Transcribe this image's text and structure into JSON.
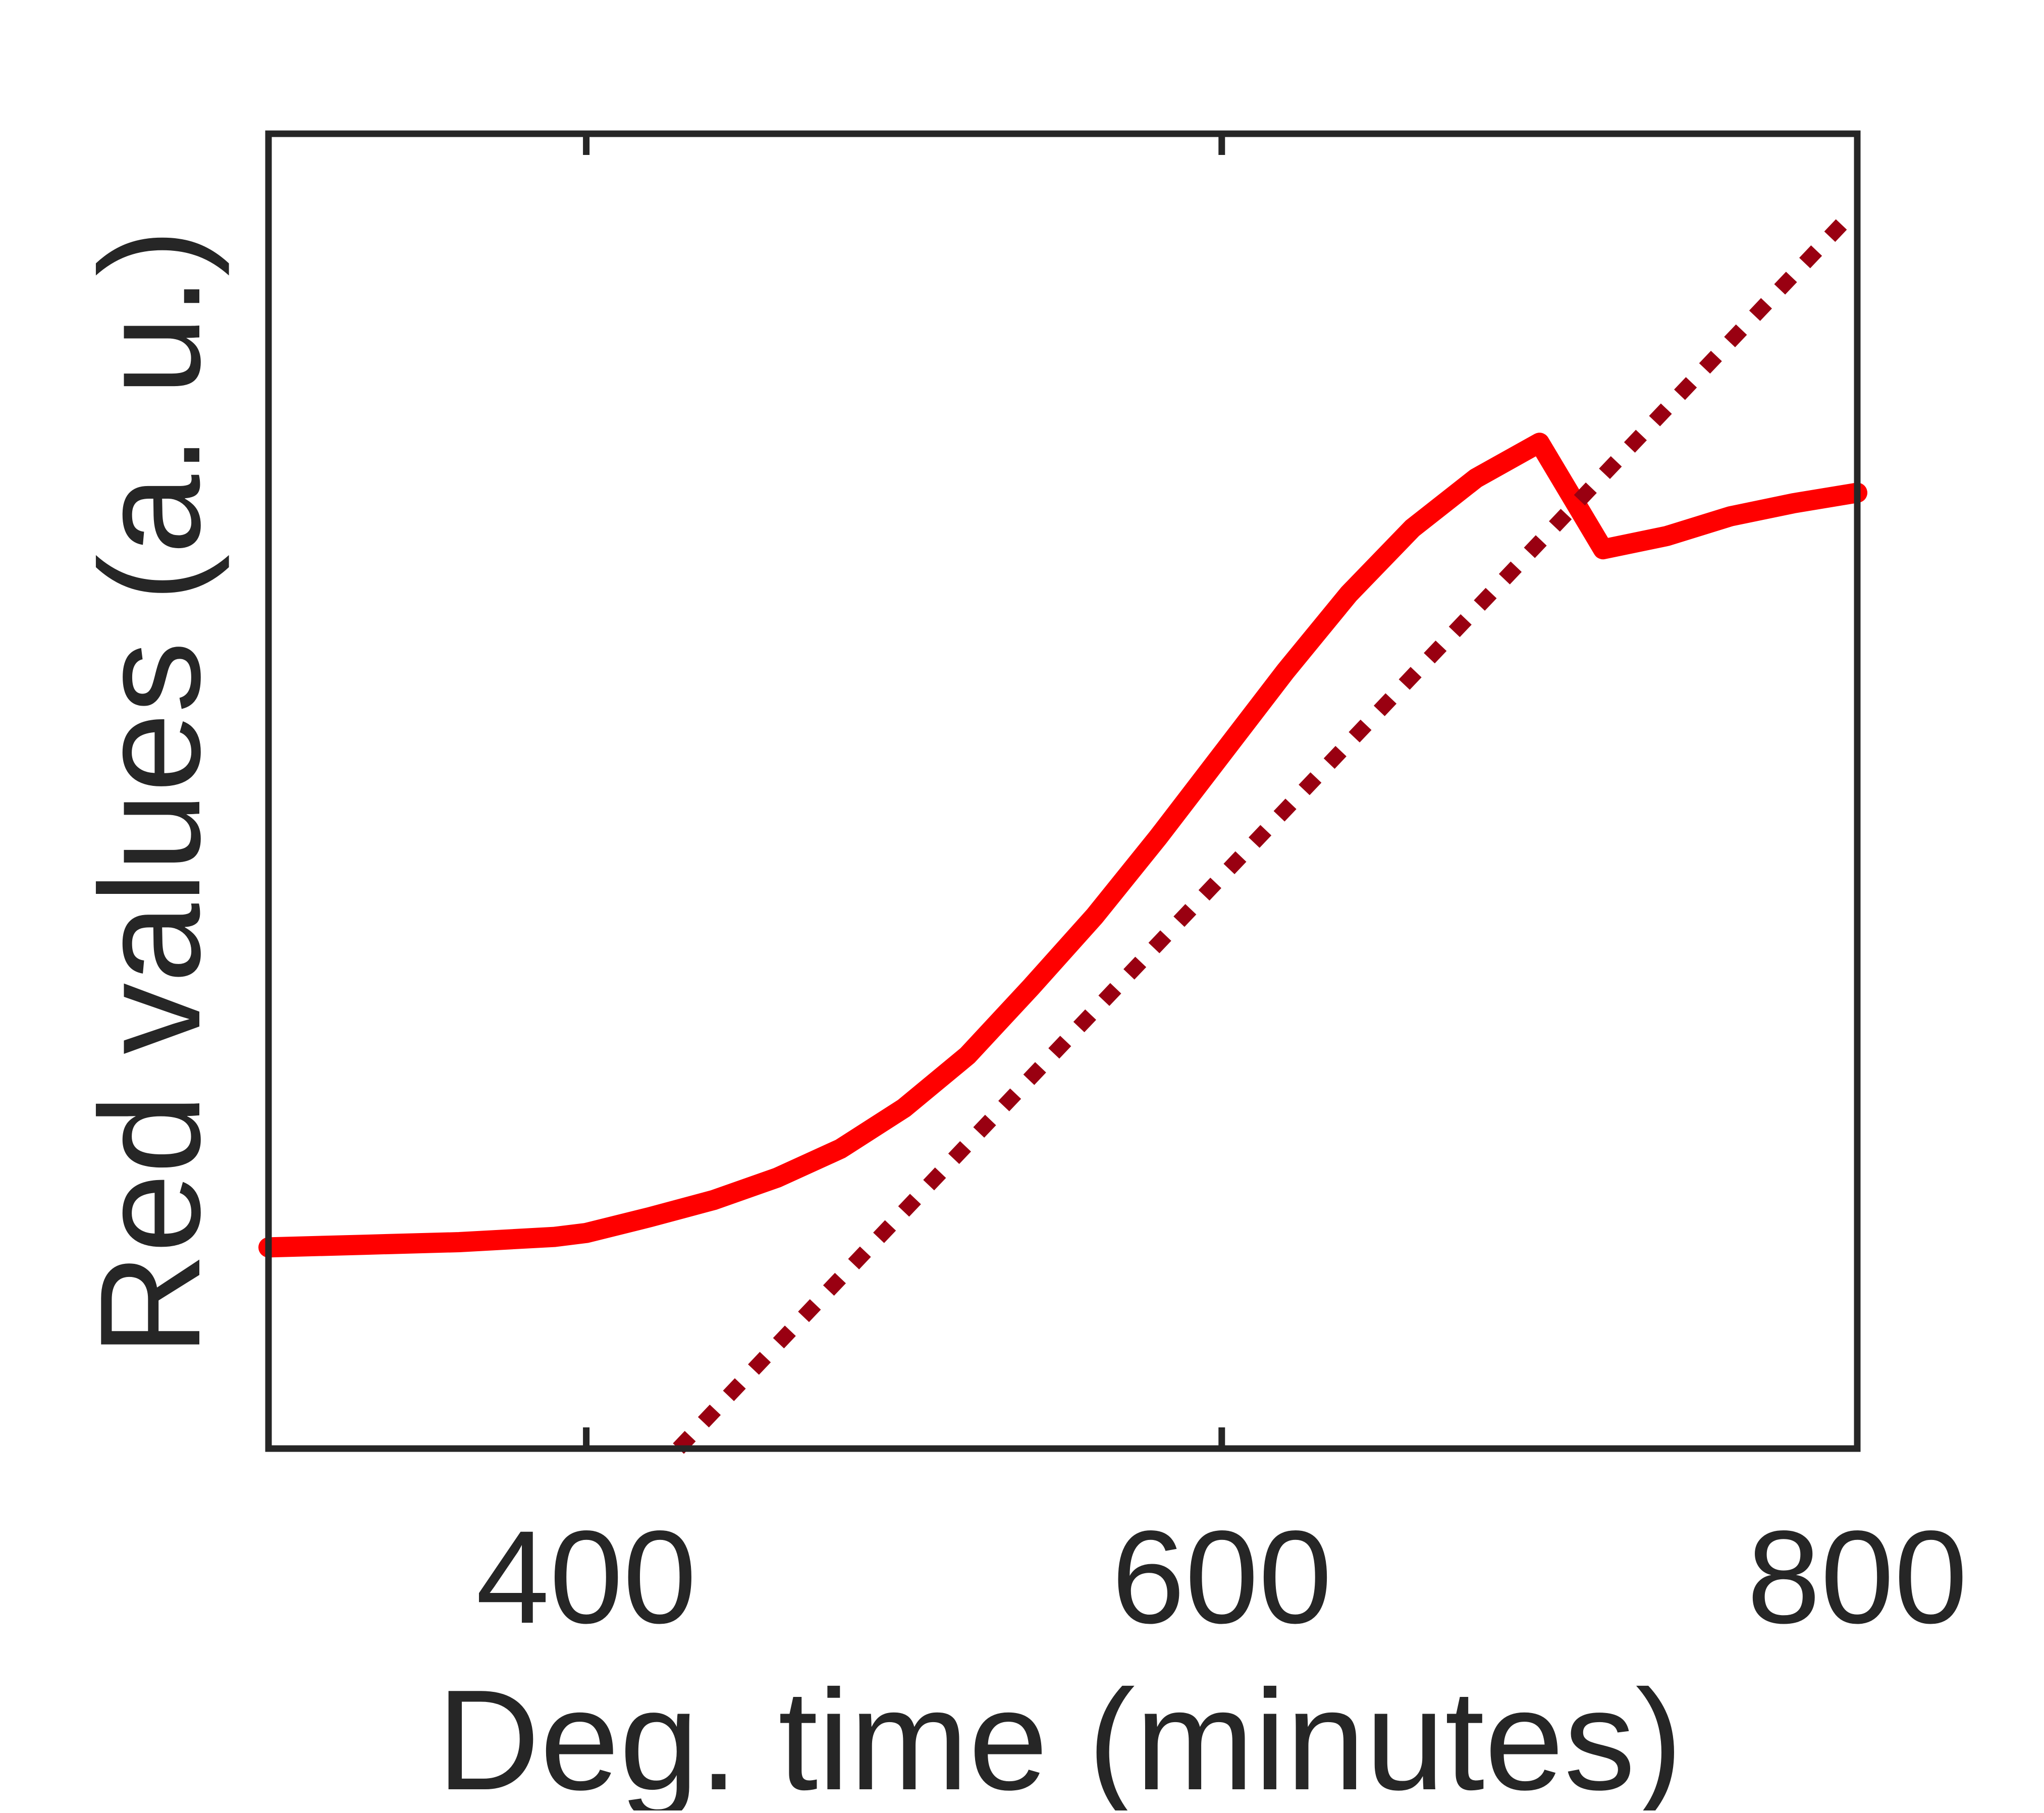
{
  "chart_data": {
    "type": "line",
    "xlabel": "Deg. time (minutes)",
    "ylabel": "Red values (a. u.)",
    "xlim": [
      300,
      800
    ],
    "ylim": [
      0,
      1
    ],
    "x_ticks": [
      400,
      600,
      800
    ],
    "x_tick_labels": [
      "400",
      "600",
      "800"
    ],
    "y_ticks": [],
    "grid": false,
    "legend": "none",
    "series": [
      {
        "style": "solid",
        "color": "#ff0000",
        "x": [
          300,
          330,
          360,
          390,
          400,
          420,
          440,
          460,
          480,
          500,
          520,
          540,
          560,
          580,
          600,
          620,
          640,
          660,
          680,
          700,
          720,
          740,
          760,
          780,
          800
        ],
        "y": [
          0.153,
          0.155,
          0.157,
          0.161,
          0.164,
          0.176,
          0.189,
          0.206,
          0.228,
          0.259,
          0.299,
          0.351,
          0.405,
          0.465,
          0.528,
          0.591,
          0.65,
          0.7,
          0.738,
          0.765,
          0.684,
          0.694,
          0.709,
          0.719,
          0.727
        ]
      },
      {
        "style": "dotted",
        "color": "#990011",
        "x": [
          429,
          795
        ],
        "y": [
          0.0,
          0.931
        ]
      }
    ]
  }
}
